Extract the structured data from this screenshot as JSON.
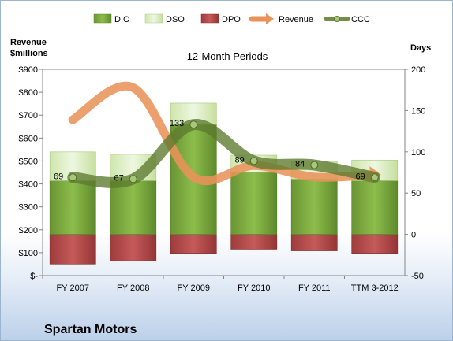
{
  "chart_data": {
    "type": "bar",
    "subtitle": "12-Month Periods",
    "company": "Spartan Motors",
    "categories": [
      "FY 2007",
      "FY 2008",
      "FY 2009",
      "FY 2010",
      "FY 2011",
      "TTM 3-2012"
    ],
    "left_axis": {
      "title_line1": "Revenue",
      "title_line2": "$millions",
      "ylim": [
        0,
        900
      ],
      "ticks": [
        0,
        100,
        200,
        300,
        400,
        500,
        600,
        700,
        800,
        900
      ],
      "tick_labels": [
        "$-",
        "$100",
        "$200",
        "$300",
        "$400",
        "$500",
        "$600",
        "$700",
        "$800",
        "$900"
      ]
    },
    "right_axis": {
      "title": "Days",
      "ylim": [
        -50,
        200
      ],
      "ticks": [
        -50,
        0,
        50,
        100,
        150,
        200
      ],
      "tick_labels": [
        "-50",
        "0",
        "50",
        "100",
        "150",
        "200"
      ]
    },
    "series": [
      {
        "name": "DIO",
        "type": "stacked-bar",
        "axis": "right",
        "color": "#77a43a",
        "values": [
          65,
          65,
          133,
          75,
          67,
          65
        ]
      },
      {
        "name": "DSO",
        "type": "stacked-bar",
        "axis": "right",
        "color": "#d4eab5",
        "values": [
          35,
          32,
          26,
          21,
          22,
          25
        ]
      },
      {
        "name": "DPO",
        "type": "bar",
        "axis": "right",
        "color": "#b34a4a",
        "values": [
          -36,
          -32,
          -23,
          -18,
          -20,
          -23
        ]
      },
      {
        "name": "Revenue",
        "type": "line",
        "axis": "left",
        "color": "#e8935a",
        "values": [
          680,
          820,
          430,
          480,
          430,
          440
        ]
      },
      {
        "name": "CCC",
        "type": "line",
        "axis": "right",
        "color": "#5c7a2e",
        "values": [
          69,
          67,
          133,
          89,
          84,
          69
        ],
        "labels": [
          "69",
          "67",
          "133",
          "89",
          "84",
          "69"
        ]
      }
    ],
    "legend": {
      "position": "top",
      "items": [
        "DIO",
        "DSO",
        "DPO",
        "Revenue",
        "CCC"
      ]
    },
    "grid": false
  }
}
